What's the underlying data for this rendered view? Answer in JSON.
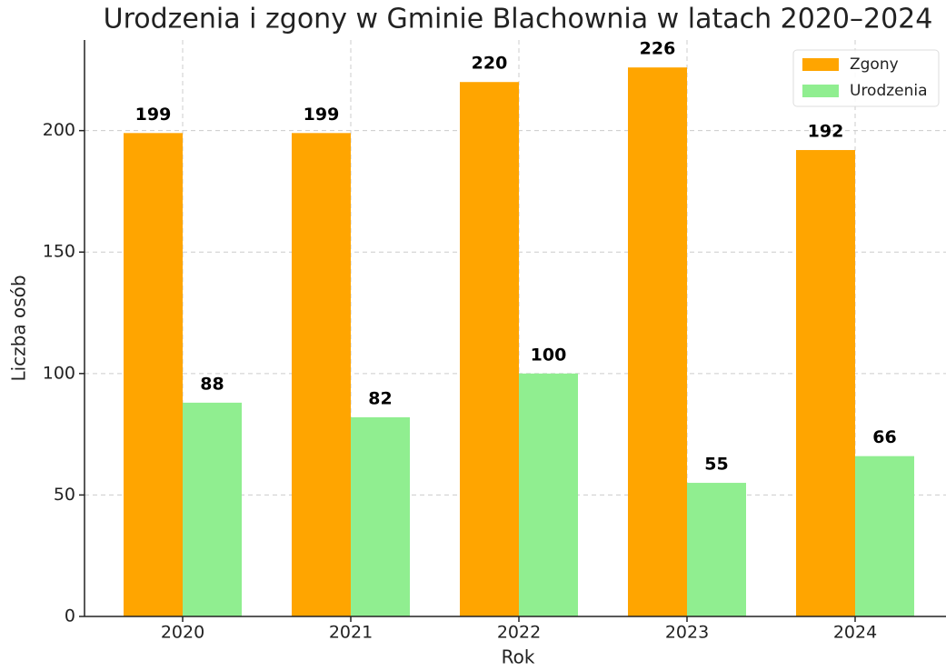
{
  "chart_data": {
    "type": "bar",
    "title": "Urodzenia i zgony w Gminie Blachownia w latach 2020–2024",
    "x_label": "Rok",
    "y_label": "Liczba osób",
    "categories": [
      "2020",
      "2021",
      "2022",
      "2023",
      "2024"
    ],
    "series": [
      {
        "name": "Zgony",
        "color": "#ffa500",
        "values": [
          199,
          199,
          220,
          226,
          192
        ]
      },
      {
        "name": "Urodzenia",
        "color": "#90ee90",
        "values": [
          88,
          82,
          100,
          55,
          66
        ]
      }
    ],
    "ylim": [
      0,
      237.3
    ],
    "yticks": [
      0,
      50,
      100,
      150,
      200
    ],
    "grid": true,
    "legend": "upper right"
  }
}
